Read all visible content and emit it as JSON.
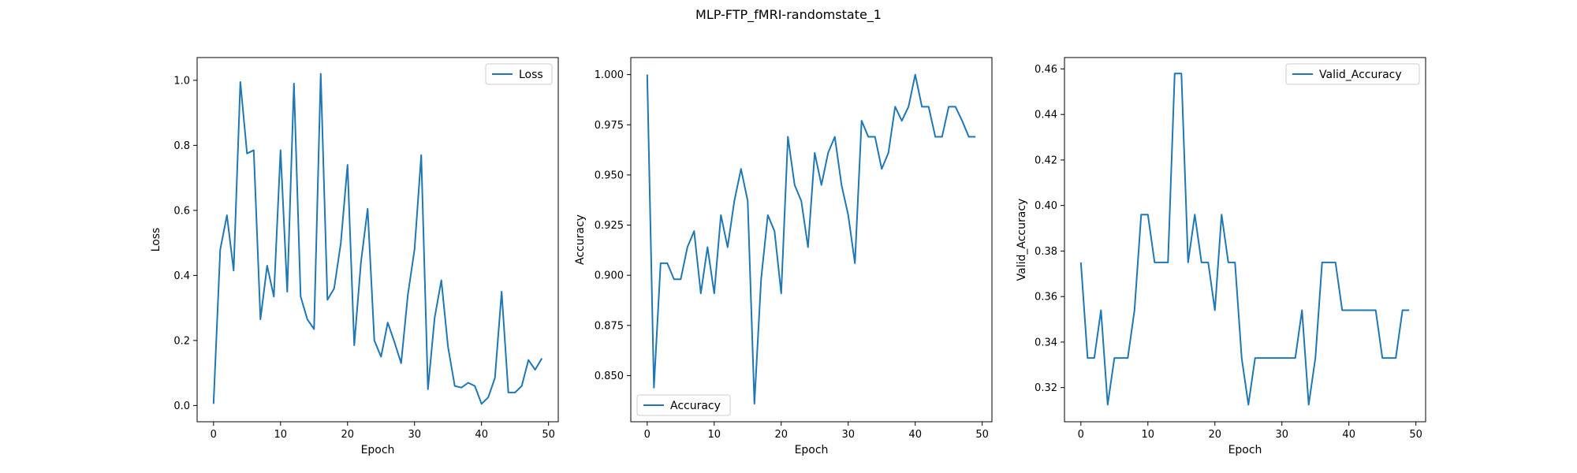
{
  "figure": {
    "title": "MLP-FTP_fMRI-randomstate_1"
  },
  "colors": {
    "series": "#1f77b4",
    "axes": "#000000",
    "legend_border": "#cccccc"
  },
  "chart_data": [
    {
      "type": "line",
      "xlabel": "Epoch",
      "ylabel": "Loss",
      "xlim": [
        -2.45,
        51.45
      ],
      "ylim": [
        -0.05,
        1.07
      ],
      "xticks": [
        0,
        10,
        20,
        30,
        40,
        50
      ],
      "yticks": [
        0.0,
        0.2,
        0.4,
        0.6,
        0.8,
        1.0
      ],
      "ytick_labels": [
        "0.0",
        "0.2",
        "0.4",
        "0.6",
        "0.8",
        "1.0"
      ],
      "legend_loc": "upper right",
      "grid": false,
      "series": [
        {
          "name": "Loss",
          "x": [
            0,
            1,
            2,
            3,
            4,
            5,
            6,
            7,
            8,
            9,
            10,
            11,
            12,
            13,
            14,
            15,
            16,
            17,
            18,
            19,
            20,
            21,
            22,
            23,
            24,
            25,
            26,
            27,
            28,
            29,
            30,
            31,
            32,
            33,
            34,
            35,
            36,
            37,
            38,
            39,
            40,
            41,
            42,
            43,
            44,
            45,
            46,
            47,
            48,
            49
          ],
          "values": [
            0.005,
            0.48,
            0.585,
            0.415,
            0.995,
            0.775,
            0.785,
            0.265,
            0.43,
            0.335,
            0.785,
            0.35,
            0.99,
            0.335,
            0.265,
            0.235,
            1.02,
            0.325,
            0.36,
            0.5,
            0.74,
            0.185,
            0.44,
            0.605,
            0.2,
            0.15,
            0.255,
            0.195,
            0.13,
            0.34,
            0.48,
            0.77,
            0.05,
            0.27,
            0.385,
            0.18,
            0.06,
            0.055,
            0.07,
            0.06,
            0.005,
            0.025,
            0.085,
            0.35,
            0.04,
            0.04,
            0.06,
            0.14,
            0.11,
            0.145
          ]
        }
      ]
    },
    {
      "type": "line",
      "xlabel": "Epoch",
      "ylabel": "Accuracy",
      "xlim": [
        -2.45,
        51.45
      ],
      "ylim": [
        0.827,
        1.0085
      ],
      "xticks": [
        0,
        10,
        20,
        30,
        40,
        50
      ],
      "yticks": [
        0.85,
        0.875,
        0.9,
        0.925,
        0.95,
        0.975,
        1.0
      ],
      "ytick_labels": [
        "0.850",
        "0.875",
        "0.900",
        "0.925",
        "0.950",
        "0.975",
        "1.000"
      ],
      "legend_loc": "lower left",
      "grid": false,
      "series": [
        {
          "name": "Accuracy",
          "x": [
            0,
            1,
            2,
            3,
            4,
            5,
            6,
            7,
            8,
            9,
            10,
            11,
            12,
            13,
            14,
            15,
            16,
            17,
            18,
            19,
            20,
            21,
            22,
            23,
            24,
            25,
            26,
            27,
            28,
            29,
            30,
            31,
            32,
            33,
            34,
            35,
            36,
            37,
            38,
            39,
            40,
            41,
            42,
            43,
            44,
            45,
            46,
            47,
            48,
            49
          ],
          "values": [
            1.0,
            0.844,
            0.906,
            0.906,
            0.898,
            0.898,
            0.914,
            0.922,
            0.891,
            0.914,
            0.891,
            0.93,
            0.914,
            0.937,
            0.953,
            0.937,
            0.836,
            0.898,
            0.93,
            0.922,
            0.891,
            0.969,
            0.945,
            0.937,
            0.914,
            0.961,
            0.945,
            0.961,
            0.969,
            0.945,
            0.93,
            0.906,
            0.977,
            0.969,
            0.969,
            0.953,
            0.961,
            0.984,
            0.977,
            0.984,
            1.0,
            0.984,
            0.984,
            0.969,
            0.969,
            0.984,
            0.984,
            0.977,
            0.969,
            0.969
          ]
        }
      ]
    },
    {
      "type": "line",
      "xlabel": "Epoch",
      "ylabel": "Valid_Accuracy",
      "xlim": [
        -2.45,
        51.45
      ],
      "ylim": [
        0.305,
        0.465
      ],
      "xticks": [
        0,
        10,
        20,
        30,
        40,
        50
      ],
      "yticks": [
        0.32,
        0.34,
        0.36,
        0.38,
        0.4,
        0.42,
        0.44,
        0.46
      ],
      "ytick_labels": [
        "0.32",
        "0.34",
        "0.36",
        "0.38",
        "0.40",
        "0.42",
        "0.44",
        "0.46"
      ],
      "legend_loc": "upper right",
      "grid": false,
      "series": [
        {
          "name": "Valid_Accuracy",
          "x": [
            0,
            1,
            2,
            3,
            4,
            5,
            6,
            7,
            8,
            9,
            10,
            11,
            12,
            13,
            14,
            15,
            16,
            17,
            18,
            19,
            20,
            21,
            22,
            23,
            24,
            25,
            26,
            27,
            28,
            29,
            30,
            31,
            32,
            33,
            34,
            35,
            36,
            37,
            38,
            39,
            40,
            41,
            42,
            43,
            44,
            45,
            46,
            47,
            48,
            49
          ],
          "values": [
            0.375,
            0.333,
            0.333,
            0.354,
            0.3125,
            0.333,
            0.333,
            0.333,
            0.354,
            0.396,
            0.396,
            0.375,
            0.375,
            0.375,
            0.458,
            0.458,
            0.375,
            0.396,
            0.375,
            0.375,
            0.354,
            0.396,
            0.375,
            0.375,
            0.333,
            0.3125,
            0.333,
            0.333,
            0.333,
            0.333,
            0.333,
            0.333,
            0.333,
            0.354,
            0.3125,
            0.333,
            0.375,
            0.375,
            0.375,
            0.354,
            0.354,
            0.354,
            0.354,
            0.354,
            0.354,
            0.333,
            0.333,
            0.333,
            0.354,
            0.354
          ]
        }
      ]
    }
  ]
}
